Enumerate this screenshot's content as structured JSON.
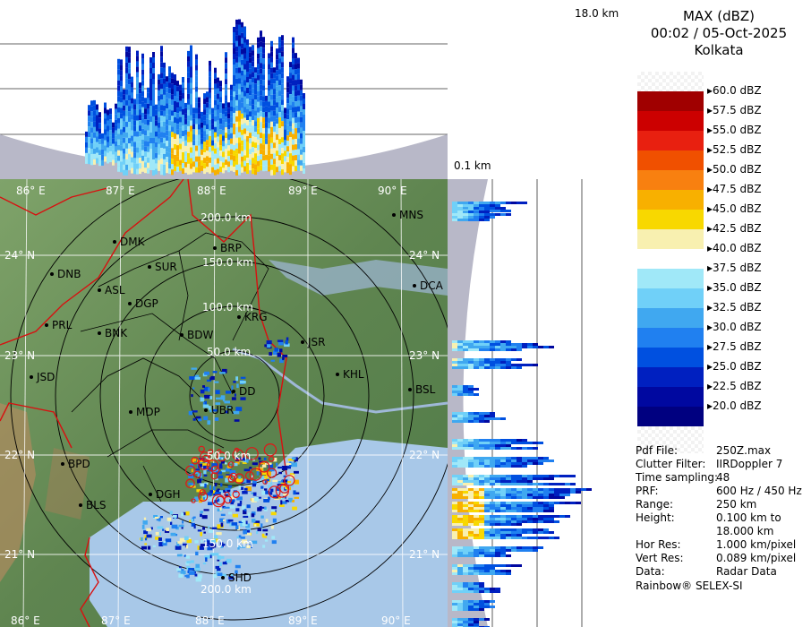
{
  "header": {
    "product": "MAX (dBZ)",
    "datetime": "00:02 / 05-Oct-2025",
    "station": "Kolkata"
  },
  "heights": {
    "top": "18.0 km",
    "bottom": "0.1 km"
  },
  "scale": {
    "labels": [
      "60.0 dBZ",
      "57.5 dBZ",
      "55.0 dBZ",
      "52.5 dBZ",
      "50.0 dBZ",
      "47.5 dBZ",
      "45.0 dBZ",
      "42.5 dBZ",
      "40.0 dBZ",
      "37.5 dBZ",
      "35.0 dBZ",
      "32.5 dBZ",
      "30.0 dBZ",
      "27.5 dBZ",
      "25.0 dBZ",
      "22.5 dBZ",
      "20.0 dBZ"
    ],
    "colors": [
      "checker",
      "#a00000",
      "#cc0000",
      "#e82010",
      "#f05000",
      "#f88010",
      "#f8b000",
      "#f8d800",
      "#f8f0b0",
      "#ffffff",
      "#a0e8f8",
      "#70d0f8",
      "#40a8f0",
      "#2080f0",
      "#0050e0",
      "#0020c0",
      "#0008a0",
      "#000080"
    ]
  },
  "info": {
    "rows": [
      {
        "label": "Pdf File:",
        "value": "250Z.max"
      },
      {
        "label": "Clutter Filter:",
        "value": "IIRDoppler 7"
      },
      {
        "label": "Time sampling:",
        "value": "48"
      },
      {
        "label": "PRF:",
        "value": "600 Hz / 450 Hz"
      },
      {
        "label": "Range:",
        "value": "250 km"
      },
      {
        "label": "Height:",
        "value": "0.100 km to"
      },
      {
        "label": "",
        "value": "18.000 km"
      },
      {
        "label": "Hor Res:",
        "value": "1.000 km/pixel"
      },
      {
        "label": "Vert Res:",
        "value": "0.089 km/pixel"
      },
      {
        "label": "Data:",
        "value": "Radar Data"
      }
    ],
    "footer": "Rainbow® SELEX-SI"
  },
  "map": {
    "lon_labels": [
      "86° E",
      "87° E",
      "88° E",
      "89° E",
      "90° E"
    ],
    "lat_labels": [
      "24° N",
      "23° N",
      "22° N",
      "21° N"
    ],
    "range_labels": [
      "50.0 km",
      "100.0 km",
      "150.0 km",
      "200.0 km"
    ],
    "cities": [
      {
        "name": "MNS"
      },
      {
        "name": "DMK"
      },
      {
        "name": "BRP"
      },
      {
        "name": "SUR"
      },
      {
        "name": "DNB"
      },
      {
        "name": "ASL"
      },
      {
        "name": "DCA"
      },
      {
        "name": "DGP"
      },
      {
        "name": "KRG"
      },
      {
        "name": "PRL"
      },
      {
        "name": "BNK"
      },
      {
        "name": "BDW"
      },
      {
        "name": "JSR"
      },
      {
        "name": "KHL"
      },
      {
        "name": "JSD"
      },
      {
        "name": "DD"
      },
      {
        "name": "BSL"
      },
      {
        "name": "MDP"
      },
      {
        "name": "UBR"
      },
      {
        "name": "BPD"
      },
      {
        "name": "BLS"
      },
      {
        "name": "DGH"
      },
      {
        "name": "SHD"
      }
    ]
  }
}
